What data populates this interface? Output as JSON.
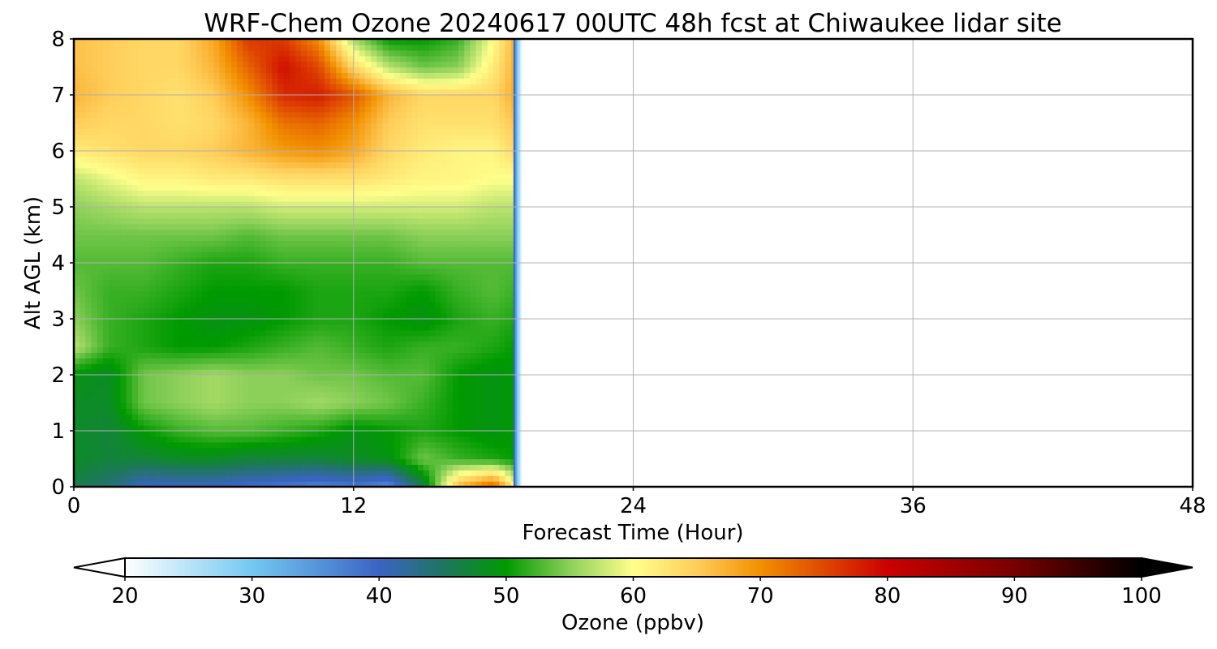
{
  "chart_data": {
    "type": "heatmap",
    "title": "WRF-Chem Ozone  20240617 00UTC 48h fcst at Chiwaukee lidar site",
    "xlabel": "Forecast Time (Hour)",
    "ylabel": "Alt AGL (km)",
    "xlim": [
      0,
      48
    ],
    "ylim": [
      0,
      8
    ],
    "xticks": [
      0,
      12,
      24,
      36,
      48
    ],
    "yticks": [
      0,
      1,
      2,
      3,
      4,
      5,
      6,
      7,
      8
    ],
    "grid": true,
    "colorbar": {
      "label": "Ozone  (ppbv)",
      "min": 20,
      "max": 100,
      "ticks": [
        20,
        30,
        40,
        50,
        60,
        70,
        80,
        90,
        100
      ],
      "extend": "both",
      "anchors": [
        {
          "v": 20,
          "color": "#ffffff"
        },
        {
          "v": 30,
          "color": "#74c8f2"
        },
        {
          "v": 40,
          "color": "#3a64c4"
        },
        {
          "v": 45,
          "color": "#1f7560"
        },
        {
          "v": 50,
          "color": "#009a00"
        },
        {
          "v": 55,
          "color": "#8cd05a"
        },
        {
          "v": 60,
          "color": "#ffff8c"
        },
        {
          "v": 65,
          "color": "#ffcd5a"
        },
        {
          "v": 70,
          "color": "#f29000"
        },
        {
          "v": 80,
          "color": "#cc0000"
        },
        {
          "v": 90,
          "color": "#780000"
        },
        {
          "v": 100,
          "color": "#000000"
        }
      ]
    },
    "data_x_hours": [
      0,
      1.5,
      3,
      4.5,
      6,
      7.5,
      9,
      10.5,
      12,
      13.5,
      15,
      16.5,
      18,
      19
    ],
    "data_y_km": [
      0,
      0.5,
      1,
      1.5,
      2,
      2.5,
      3,
      3.5,
      4,
      4.5,
      5,
      5.5,
      6,
      6.5,
      7,
      7.5,
      8
    ],
    "ozone_ppbv": [
      [
        46,
        44,
        40,
        40,
        40,
        39,
        38,
        37,
        38,
        36,
        46,
        67,
        74,
        60
      ],
      [
        48,
        47,
        47,
        48,
        48,
        47,
        47,
        47,
        48,
        49,
        54,
        52,
        51,
        50
      ],
      [
        48,
        47,
        50,
        52,
        53,
        53,
        52,
        51,
        49,
        50,
        51,
        50,
        49,
        50
      ],
      [
        48,
        48,
        54,
        55,
        56,
        55,
        55,
        56,
        55,
        54,
        52,
        50,
        49,
        50
      ],
      [
        49,
        48,
        54,
        55,
        56,
        55,
        55,
        54,
        54,
        53,
        53,
        50,
        49,
        50
      ],
      [
        57,
        52,
        51,
        50,
        50,
        51,
        52,
        53,
        52,
        51,
        52,
        52,
        51,
        50
      ],
      [
        55,
        52,
        51,
        50,
        49,
        49,
        50,
        51,
        51,
        50,
        49,
        51,
        52,
        51
      ],
      [
        54,
        52,
        52,
        51,
        50,
        50,
        50,
        51,
        51,
        51,
        50,
        52,
        53,
        52
      ],
      [
        53,
        53,
        53,
        52,
        51,
        51,
        52,
        52,
        52,
        52,
        53,
        53,
        53,
        53
      ],
      [
        54,
        54,
        54,
        54,
        54,
        53,
        54,
        54,
        54,
        54,
        55,
        55,
        55,
        55
      ],
      [
        55,
        56,
        57,
        57,
        57,
        57,
        58,
        58,
        58,
        58,
        58,
        58,
        57,
        57
      ],
      [
        57,
        59,
        61,
        61,
        62,
        62,
        63,
        63,
        63,
        62,
        61,
        61,
        60,
        60
      ],
      [
        62,
        63,
        64,
        64,
        65,
        67,
        69,
        70,
        68,
        64,
        62,
        61,
        61,
        64
      ],
      [
        65,
        64,
        64,
        63,
        64,
        67,
        72,
        73,
        70,
        65,
        63,
        63,
        63,
        66
      ],
      [
        67,
        65,
        64,
        63,
        65,
        70,
        77,
        78,
        74,
        67,
        64,
        64,
        64,
        68
      ],
      [
        66,
        65,
        64,
        64,
        67,
        73,
        79,
        75,
        64,
        57,
        54,
        55,
        62,
        68
      ],
      [
        66,
        65,
        64,
        64,
        68,
        76,
        76,
        70,
        56,
        50,
        50,
        52,
        60,
        68
      ]
    ],
    "data_end_hour": 19,
    "annotations": []
  }
}
